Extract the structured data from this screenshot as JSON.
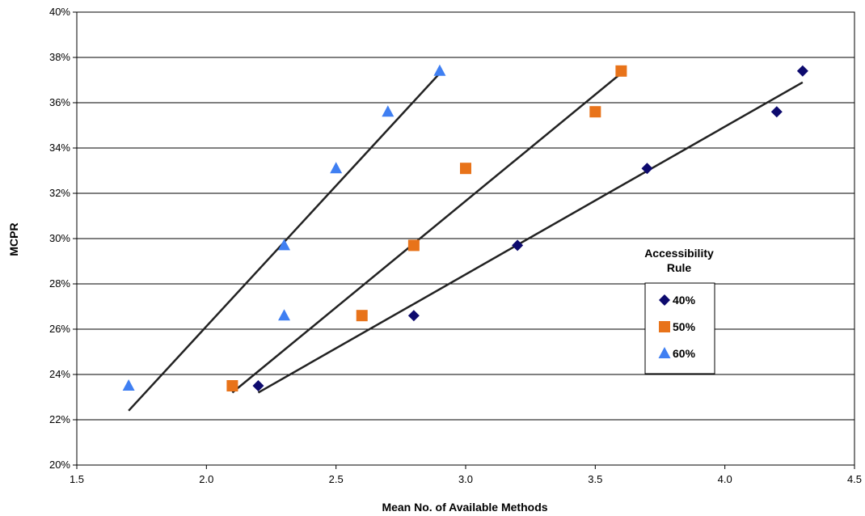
{
  "chart_data": {
    "type": "scatter",
    "xlabel": "Mean No. of Available Methods",
    "ylabel": "MCPR",
    "xlim": [
      1.5,
      4.5
    ],
    "ylim": [
      20,
      40
    ],
    "x_ticks": [
      "1.5",
      "2.0",
      "2.5",
      "3.0",
      "3.5",
      "4.0",
      "4.5"
    ],
    "y_ticks": [
      "20%",
      "22%",
      "24%",
      "26%",
      "28%",
      "30%",
      "32%",
      "34%",
      "36%",
      "38%",
      "40%"
    ],
    "grid": "horizontal",
    "legend": {
      "title_line1": "Accessibility",
      "title_line2": "Rule",
      "placement": "right"
    },
    "series": [
      {
        "name": "40%",
        "marker": "diamond",
        "color": "#0d0a6e",
        "points": [
          [
            2.2,
            23.5
          ],
          [
            2.8,
            26.6
          ],
          [
            3.2,
            29.7
          ],
          [
            3.7,
            33.1
          ],
          [
            4.2,
            35.6
          ],
          [
            4.3,
            37.4
          ]
        ],
        "trendline": [
          [
            2.2,
            23.2
          ],
          [
            4.3,
            36.9
          ]
        ]
      },
      {
        "name": "50%",
        "marker": "square",
        "color": "#e8731a",
        "points": [
          [
            2.1,
            23.5
          ],
          [
            2.6,
            26.6
          ],
          [
            2.8,
            29.7
          ],
          [
            3.0,
            33.1
          ],
          [
            3.5,
            35.6
          ],
          [
            3.6,
            37.4
          ]
        ],
        "trendline": [
          [
            2.1,
            23.2
          ],
          [
            3.6,
            37.3
          ]
        ]
      },
      {
        "name": "60%",
        "marker": "triangle",
        "color": "#3f7ff2",
        "points": [
          [
            1.7,
            23.5
          ],
          [
            2.3,
            26.6
          ],
          [
            2.3,
            29.7
          ],
          [
            2.5,
            33.1
          ],
          [
            2.7,
            35.6
          ],
          [
            2.9,
            37.4
          ]
        ],
        "trendline": [
          [
            1.7,
            22.4
          ],
          [
            2.9,
            37.3
          ]
        ]
      }
    ]
  }
}
